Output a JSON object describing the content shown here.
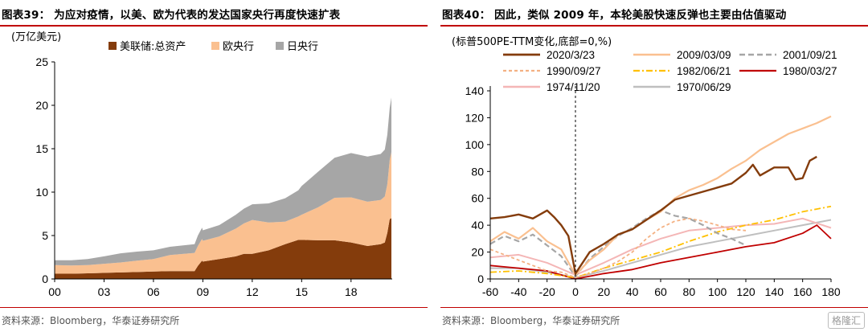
{
  "left": {
    "title": "图表39： 为应对疫情，以美、欧为代表的发达国家央行再度快速扩表",
    "source": "资料来源：Bloomberg，华泰证券研究所",
    "unit": "(万亿美元)",
    "colors": {
      "fed": "#843c0c",
      "ecb": "#fac090",
      "boj": "#a6a6a6",
      "rule": "#c00000"
    }
  },
  "right": {
    "title": "图表40： 因此，类似 2009 年，本轮美股快速反弹也主要由估值驱动",
    "source": "资料来源：Bloomberg，华泰证券研究所",
    "unit": "(标普500PE-TTM变化,底部=0,%)",
    "colors": {
      "rule": "#c00000"
    }
  },
  "watermark": "格隆汇",
  "chart_data": [
    {
      "type": "area",
      "stacked": true,
      "xlabel": "",
      "ylabel": "(万亿美元)",
      "x_tick_labels": [
        "00",
        "03",
        "06",
        "09",
        "12",
        "15",
        "18"
      ],
      "ylim": [
        0,
        25
      ],
      "y_ticks": [
        0,
        5,
        10,
        15,
        20,
        25
      ],
      "legend_position": "top-left",
      "x_years": [
        2000,
        2001,
        2002,
        2003,
        2004,
        2005,
        2006,
        2007,
        2008.5,
        2008.7,
        2008.95,
        2009,
        2010,
        2011,
        2011.5,
        2012,
        2013,
        2014,
        2014.8,
        2015,
        2016,
        2017,
        2018,
        2019,
        2019.8,
        2020.05,
        2020.2,
        2020.35,
        2020.45
      ],
      "series": [
        {
          "name": "美联储:总资产",
          "color": "#843c0c",
          "values": [
            0.6,
            0.6,
            0.65,
            0.7,
            0.75,
            0.8,
            0.85,
            0.9,
            0.9,
            1.5,
            2.1,
            2.0,
            2.3,
            2.6,
            2.9,
            2.9,
            3.3,
            4.0,
            4.5,
            4.5,
            4.45,
            4.45,
            4.2,
            3.8,
            4.0,
            4.2,
            5.3,
            6.9,
            7.0
          ]
        },
        {
          "name": "欧央行",
          "color": "#fac090",
          "values": [
            1.0,
            0.95,
            0.95,
            1.05,
            1.15,
            1.3,
            1.45,
            1.85,
            2.1,
            2.3,
            2.5,
            2.4,
            2.6,
            3.2,
            3.5,
            3.9,
            3.2,
            2.6,
            2.7,
            2.9,
            3.8,
            4.9,
            5.2,
            5.1,
            5.1,
            5.3,
            5.6,
            6.8,
            7.6
          ]
        },
        {
          "name": "日央行",
          "color": "#a6a6a6",
          "values": [
            0.55,
            0.6,
            0.7,
            0.85,
            1.05,
            1.05,
            1.0,
            0.95,
            1.0,
            1.2,
            1.3,
            1.2,
            1.3,
            1.6,
            1.7,
            1.8,
            2.2,
            2.7,
            3.0,
            3.3,
            4.1,
            4.6,
            5.1,
            5.2,
            5.3,
            5.4,
            5.7,
            6.0,
            6.3
          ]
        }
      ]
    },
    {
      "type": "line",
      "xlabel": "",
      "ylabel": "(标普500PE-TTM变化,底部=0,%)",
      "xlim": [
        -60,
        180
      ],
      "x_ticks": [
        -60,
        -40,
        -20,
        0,
        20,
        40,
        60,
        80,
        100,
        120,
        140,
        160,
        180
      ],
      "ylim": [
        0,
        140
      ],
      "y_ticks": [
        0,
        20,
        40,
        60,
        80,
        100,
        120,
        140
      ],
      "legend_position": "top",
      "vertical_reference_x": 0,
      "series": [
        {
          "name": "2020/3/23",
          "color": "#843c0c",
          "dash": "solid",
          "width": 2.4,
          "x": [
            -60,
            -50,
            -40,
            -30,
            -20,
            -15,
            -10,
            -5,
            0,
            10,
            20,
            30,
            40,
            50,
            60,
            70,
            80,
            90,
            100,
            110,
            120,
            125,
            130,
            140,
            150,
            155,
            160,
            165,
            170
          ],
          "y": [
            45,
            46,
            48,
            45,
            51,
            46,
            40,
            32,
            4,
            20,
            26,
            33,
            37,
            44,
            51,
            59,
            62,
            65,
            68,
            71,
            79,
            85,
            77,
            83,
            83,
            74,
            75,
            88,
            91
          ]
        },
        {
          "name": "2009/03/09",
          "color": "#fac090",
          "dash": "solid",
          "width": 2.2,
          "x": [
            -60,
            -50,
            -40,
            -30,
            -20,
            -10,
            0,
            10,
            20,
            30,
            40,
            50,
            60,
            70,
            80,
            90,
            100,
            110,
            120,
            130,
            140,
            150,
            160,
            170,
            180
          ],
          "y": [
            28,
            35,
            30,
            38,
            28,
            22,
            3,
            14,
            22,
            33,
            37,
            44,
            50,
            60,
            66,
            70,
            75,
            82,
            88,
            96,
            102,
            108,
            112,
            116,
            121
          ]
        },
        {
          "name": "2001/09/21",
          "color": "#a6a6a6",
          "dash": "7,4",
          "width": 2.2,
          "x": [
            -60,
            -50,
            -40,
            -30,
            -20,
            -10,
            0,
            10,
            20,
            30,
            40,
            50,
            60,
            70,
            80,
            90,
            100,
            110,
            120
          ],
          "y": [
            26,
            32,
            28,
            33,
            25,
            17,
            2,
            15,
            24,
            32,
            38,
            45,
            51,
            47,
            45,
            40,
            34,
            30,
            25
          ]
        },
        {
          "name": "1990/09/27",
          "color": "#f4b183",
          "dash": "4,3",
          "width": 1.8,
          "x": [
            -60,
            -50,
            -40,
            -30,
            -20,
            -10,
            0,
            10,
            20,
            30,
            40,
            50,
            60,
            70,
            80,
            90,
            100,
            110,
            120
          ],
          "y": [
            22,
            18,
            14,
            10,
            6,
            5,
            1,
            4,
            8,
            13,
            20,
            30,
            38,
            43,
            45,
            43,
            40,
            37,
            36
          ]
        },
        {
          "name": "1982/06/21",
          "color": "#ffc000",
          "dash": "8,3,2,3",
          "width": 1.8,
          "x": [
            -60,
            -40,
            -20,
            0,
            20,
            40,
            60,
            80,
            100,
            120,
            140,
            160,
            180
          ],
          "y": [
            5,
            6,
            4,
            1,
            8,
            14,
            20,
            28,
            35,
            40,
            44,
            50,
            54
          ]
        },
        {
          "name": "1980/03/27",
          "color": "#c00000",
          "dash": "solid",
          "width": 1.8,
          "x": [
            -60,
            -40,
            -20,
            0,
            20,
            40,
            60,
            80,
            100,
            120,
            140,
            160,
            170,
            180
          ],
          "y": [
            10,
            8,
            6,
            0,
            4,
            7,
            12,
            16,
            20,
            24,
            27,
            34,
            40,
            30
          ]
        },
        {
          "name": "1974/11/20",
          "color": "#f4b6b6",
          "dash": "solid",
          "width": 2.0,
          "x": [
            -60,
            -40,
            -20,
            0,
            20,
            40,
            60,
            80,
            100,
            120,
            140,
            160,
            180
          ],
          "y": [
            16,
            18,
            12,
            3,
            12,
            22,
            30,
            36,
            38,
            40,
            41,
            45,
            38
          ]
        },
        {
          "name": "1970/06/29",
          "color": "#bfbfbf",
          "dash": "solid",
          "width": 2.0,
          "x": [
            -60,
            -40,
            -20,
            0,
            20,
            40,
            60,
            80,
            100,
            120,
            140,
            160,
            180
          ],
          "y": [
            8,
            8,
            5,
            1,
            6,
            12,
            18,
            24,
            28,
            32,
            36,
            40,
            44
          ]
        }
      ]
    }
  ]
}
